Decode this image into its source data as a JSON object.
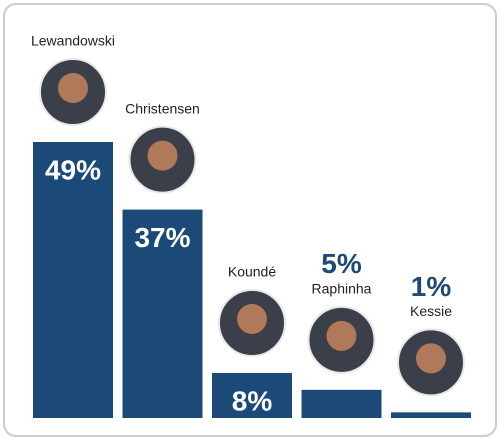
{
  "chart_data": {
    "type": "bar",
    "categories": [
      "Lewandowski",
      "Christensen",
      "Koundé",
      "Raphinha",
      "Kessie"
    ],
    "values": [
      49,
      37,
      8,
      5,
      1
    ],
    "value_labels": [
      "49%",
      "37%",
      "8%",
      "5%",
      "1%"
    ],
    "color": "#1b4a78"
  }
}
